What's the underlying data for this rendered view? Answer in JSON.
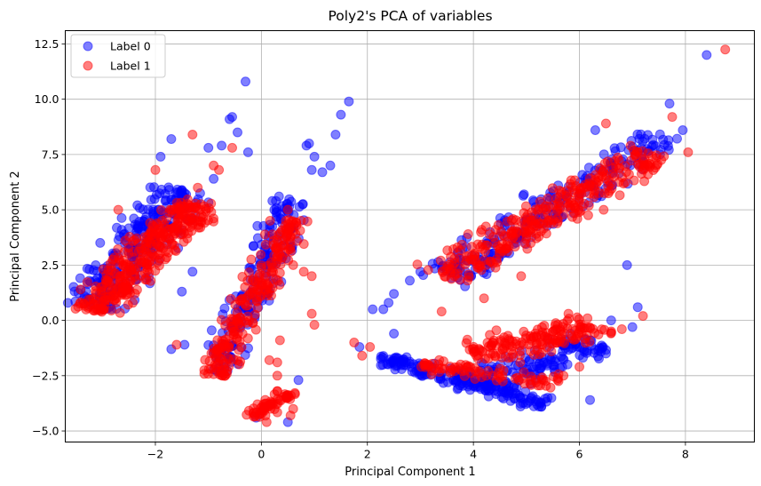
{
  "chart_data": {
    "type": "scatter",
    "title": "Poly2's PCA of variables",
    "xlabel": "Principal Component 1",
    "ylabel": "Principal Component 2",
    "xlim": [
      -3.7,
      9.3
    ],
    "ylim": [
      -5.5,
      13.1
    ],
    "xticks": [
      -2,
      0,
      2,
      4,
      6,
      8
    ],
    "yticks": [
      -5.0,
      -2.5,
      0.0,
      2.5,
      5.0,
      7.5,
      10.0,
      12.5
    ],
    "xtick_labels": [
      "−2",
      "0",
      "2",
      "4",
      "6",
      "8"
    ],
    "ytick_labels": [
      "−5.0",
      "−2.5",
      "0.0",
      "2.5",
      "5.0",
      "7.5",
      "10.0",
      "12.5"
    ],
    "grid": true,
    "legend_position": "top-left",
    "marker_alpha": 0.5,
    "series": [
      {
        "name": "Label 0",
        "color": "#0000ff",
        "clusters": [
          {
            "x0": -3.2,
            "y0": 0.6,
            "x1": -1.5,
            "y1": 6.0,
            "width": 0.9,
            "count": 260
          },
          {
            "x0": -0.9,
            "y0": -2.6,
            "x1": 0.6,
            "y1": 5.6,
            "width": 0.55,
            "count": 180
          },
          {
            "x0": 2.2,
            "y0": -1.7,
            "x1": 5.4,
            "y1": -3.8,
            "width": 0.5,
            "count": 170
          },
          {
            "x0": 4.0,
            "y0": -3.0,
            "x1": 6.4,
            "y1": -1.0,
            "width": 1.0,
            "count": 140
          },
          {
            "x0": 3.4,
            "y0": 1.8,
            "x1": 7.6,
            "y1": 8.4,
            "width": 0.9,
            "count": 220
          }
        ],
        "points": [
          [
            -0.3,
            10.8
          ],
          [
            1.65,
            9.9
          ],
          [
            8.4,
            12.0
          ],
          [
            -0.6,
            9.1
          ],
          [
            -0.55,
            9.2
          ],
          [
            -1.7,
            8.2
          ],
          [
            -0.45,
            8.5
          ],
          [
            -1.0,
            7.8
          ],
          [
            -0.75,
            7.9
          ],
          [
            -0.25,
            7.6
          ],
          [
            0.9,
            8.0
          ],
          [
            0.85,
            7.9
          ],
          [
            1.4,
            8.4
          ],
          [
            1.0,
            7.4
          ],
          [
            1.3,
            7.0
          ],
          [
            0.95,
            6.8
          ],
          [
            1.15,
            6.7
          ],
          [
            1.5,
            9.3
          ],
          [
            -1.9,
            7.4
          ],
          [
            -0.9,
            6.4
          ],
          [
            2.1,
            0.5
          ],
          [
            2.4,
            0.8
          ],
          [
            2.5,
            1.2
          ],
          [
            2.8,
            1.8
          ],
          [
            3.0,
            2.2
          ],
          [
            2.3,
            0.5
          ],
          [
            1.85,
            -1.2
          ],
          [
            2.5,
            -0.6
          ],
          [
            6.6,
            0.0
          ],
          [
            7.0,
            -0.3
          ],
          [
            6.9,
            2.5
          ],
          [
            6.2,
            -3.6
          ],
          [
            6.0,
            -1.2
          ],
          [
            7.7,
            9.8
          ],
          [
            7.95,
            8.6
          ],
          [
            6.3,
            8.6
          ],
          [
            5.6,
            6.1
          ],
          [
            -1.7,
            -1.3
          ],
          [
            -1.45,
            -1.1
          ],
          [
            -1.5,
            1.3
          ],
          [
            -1.3,
            2.2
          ],
          [
            0.5,
            -4.6
          ],
          [
            -0.1,
            -4.4
          ],
          [
            0.7,
            -2.7
          ],
          [
            6.5,
            -1.5
          ],
          [
            7.1,
            0.6
          ]
        ]
      },
      {
        "name": "Label 1",
        "color": "#ff0000",
        "clusters": [
          {
            "x0": -3.2,
            "y0": 0.4,
            "x1": -1.2,
            "y1": 5.4,
            "width": 0.8,
            "count": 330
          },
          {
            "x0": -0.9,
            "y0": -2.5,
            "x1": 0.6,
            "y1": 4.6,
            "width": 0.5,
            "count": 230
          },
          {
            "x0": -0.1,
            "y0": -4.4,
            "x1": 0.5,
            "y1": -3.2,
            "width": 0.35,
            "count": 60
          },
          {
            "x0": 3.4,
            "y0": 2.0,
            "x1": 7.4,
            "y1": 7.6,
            "width": 0.85,
            "count": 300
          },
          {
            "x0": 4.0,
            "y0": -1.6,
            "x1": 6.4,
            "y1": -0.2,
            "width": 0.9,
            "count": 160
          },
          {
            "x0": 3.0,
            "y0": -2.0,
            "x1": 5.6,
            "y1": -2.8,
            "width": 0.45,
            "count": 80
          }
        ],
        "points": [
          [
            8.75,
            12.25
          ],
          [
            -1.3,
            8.4
          ],
          [
            -0.55,
            7.8
          ],
          [
            -0.9,
            7.0
          ],
          [
            -0.8,
            6.8
          ],
          [
            0.5,
            5.0
          ],
          [
            0.6,
            2.5
          ],
          [
            0.8,
            2.2
          ],
          [
            0.95,
            2.0
          ],
          [
            0.95,
            0.3
          ],
          [
            1.0,
            -0.2
          ],
          [
            0.35,
            -0.9
          ],
          [
            0.3,
            -1.9
          ],
          [
            0.15,
            -1.8
          ],
          [
            0.3,
            -2.5
          ],
          [
            0.3,
            -3.2
          ],
          [
            0.6,
            -4.0
          ],
          [
            0.55,
            -4.3
          ],
          [
            0.1,
            -4.6
          ],
          [
            3.9,
            3.9
          ],
          [
            3.7,
            3.3
          ],
          [
            4.9,
            2.0
          ],
          [
            4.2,
            1.0
          ],
          [
            3.4,
            0.4
          ],
          [
            5.7,
            -2.5
          ],
          [
            5.5,
            -0.5
          ],
          [
            6.6,
            -0.5
          ],
          [
            7.2,
            0.2
          ],
          [
            7.1,
            7.6
          ],
          [
            8.05,
            7.6
          ],
          [
            7.75,
            9.2
          ],
          [
            6.5,
            8.9
          ],
          [
            -1.2,
            6.0
          ],
          [
            -2.0,
            6.8
          ],
          [
            -2.7,
            5.0
          ],
          [
            -1.6,
            -1.1
          ],
          [
            1.75,
            -1.0
          ],
          [
            1.9,
            -1.6
          ],
          [
            2.05,
            -1.2
          ],
          [
            7.3,
            7.0
          ],
          [
            6.8,
            -0.4
          ],
          [
            6.0,
            -2.1
          ]
        ]
      }
    ]
  }
}
